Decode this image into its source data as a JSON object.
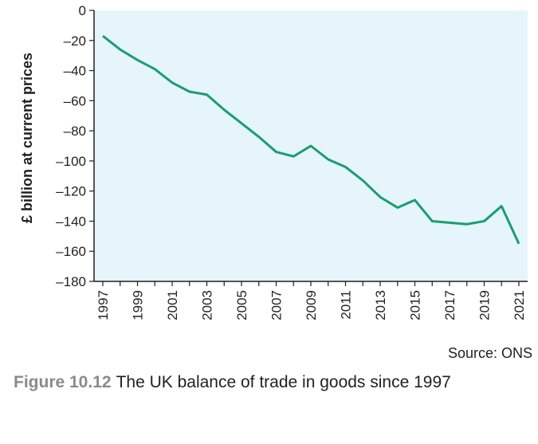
{
  "chart_data": {
    "type": "line",
    "ylabel": "£ billion at current prices",
    "ylim": [
      -180,
      0
    ],
    "yticks": [
      0,
      -20,
      -40,
      -60,
      -80,
      -100,
      -120,
      -140,
      -160,
      -180
    ],
    "ytick_labels": [
      "0",
      "–20",
      "–40",
      "–60",
      "–80",
      "–100",
      "–120",
      "–140",
      "–160",
      "–180"
    ],
    "xlim": [
      1997,
      2021
    ],
    "xtick_labels": [
      "1997",
      "1999",
      "2001",
      "2003",
      "2005",
      "2007",
      "2009",
      "2011",
      "2013",
      "2015",
      "2017",
      "2019",
      "2021"
    ],
    "grid": false,
    "background_color": "#e6f5fb",
    "line_color": "#1a9e6e",
    "x": [
      1997,
      1998,
      1999,
      2000,
      2001,
      2002,
      2003,
      2004,
      2005,
      2006,
      2007,
      2008,
      2009,
      2010,
      2011,
      2012,
      2013,
      2014,
      2015,
      2016,
      2017,
      2018,
      2019,
      2020,
      2021
    ],
    "values": [
      -17,
      -26,
      -33,
      -39,
      -48,
      -54,
      -56,
      -66,
      -75,
      -84,
      -94,
      -97,
      -90,
      -99,
      -104,
      -113,
      -124,
      -131,
      -126,
      -140,
      -141,
      -142,
      -140,
      -130,
      -155
    ]
  },
  "source": "Source: ONS",
  "caption": {
    "number": "Figure 10.12",
    "text": "The UK balance of trade in goods since 1997"
  }
}
